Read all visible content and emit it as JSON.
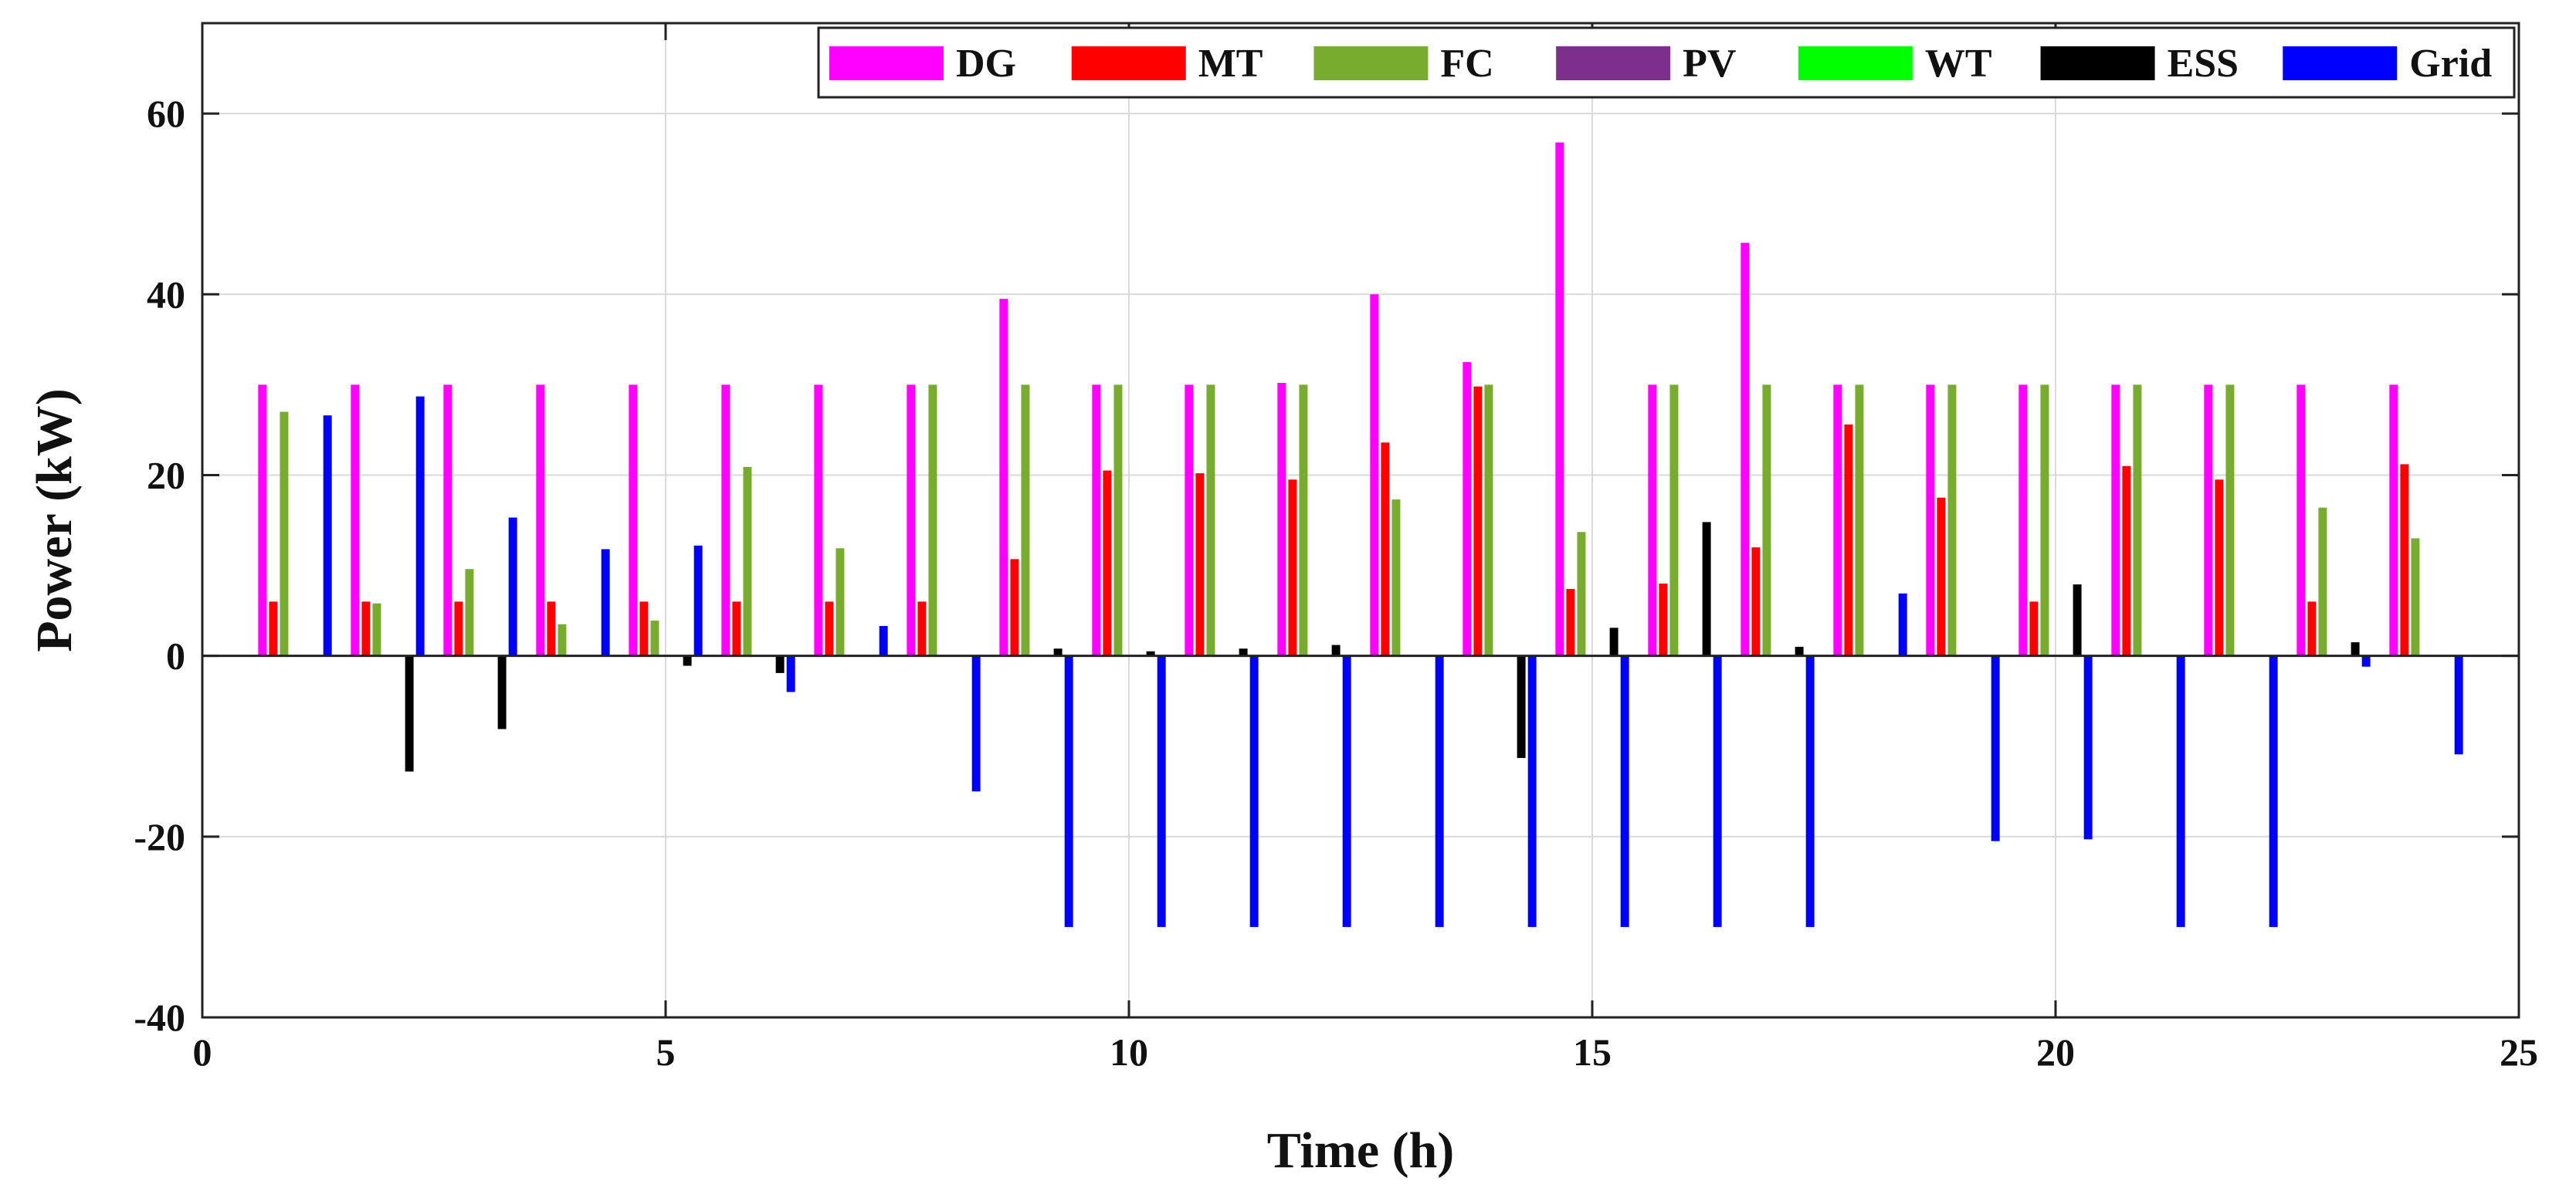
{
  "chart_data": {
    "type": "bar",
    "title": "",
    "xlabel": "Time (h)",
    "ylabel": "Power (kW)",
    "xlim": [
      0,
      25
    ],
    "ylim": [
      -40,
      70
    ],
    "xticks": [
      0,
      5,
      10,
      15,
      20,
      25
    ],
    "yticks": [
      -40,
      -20,
      0,
      20,
      40,
      60
    ],
    "xtick_labels": [
      "0",
      "5",
      "10",
      "15",
      "20",
      "25"
    ],
    "ytick_labels": [
      "-40",
      "-20",
      "0",
      "20",
      "40",
      "60"
    ],
    "grid": true,
    "legend_position": "top-right",
    "x": [
      1,
      2,
      3,
      4,
      5,
      6,
      7,
      8,
      9,
      10,
      11,
      12,
      13,
      14,
      15,
      16,
      17,
      18,
      19,
      20,
      21,
      22,
      23,
      24
    ],
    "series": [
      {
        "name": "DG",
        "color": "#ff00ff",
        "values": [
          30,
          30,
          30,
          30,
          30,
          30,
          30,
          30,
          39.5,
          30,
          30,
          30.2,
          40,
          32.5,
          56.8,
          30,
          45.7,
          30,
          30,
          30,
          30,
          30,
          30,
          30
        ]
      },
      {
        "name": "MT",
        "color": "#ff0000",
        "values": [
          6,
          6,
          6,
          6,
          6,
          6,
          6,
          6,
          10.7,
          20.5,
          20.2,
          19.5,
          23.6,
          29.8,
          7.4,
          8,
          12,
          25.6,
          17.5,
          6,
          21,
          19.5,
          6,
          21.2
        ]
      },
      {
        "name": "FC",
        "color": "#77ac30",
        "values": [
          27,
          5.8,
          9.6,
          3.5,
          3.9,
          20.9,
          11.9,
          30,
          30,
          30,
          30,
          30,
          17.3,
          30,
          13.7,
          30,
          30,
          30,
          30,
          30,
          30,
          30,
          16.4,
          13
        ]
      },
      {
        "name": "PV",
        "color": "#7e2f8e",
        "values": [
          0,
          0,
          0,
          0,
          0,
          0,
          0,
          0,
          0,
          0,
          0,
          0,
          0,
          0,
          0,
          0,
          0,
          0,
          0,
          0,
          0,
          0,
          0,
          0
        ]
      },
      {
        "name": "WT",
        "color": "#00ff00",
        "values": [
          0,
          0,
          0,
          0,
          0,
          0,
          0,
          0,
          0,
          0,
          0,
          0,
          0,
          0,
          0,
          0,
          0,
          0,
          0,
          0,
          0,
          0,
          0,
          0
        ]
      },
      {
        "name": "ESS",
        "color": "#000000",
        "values": [
          0,
          -12.8,
          -8.1,
          0,
          -1.1,
          -1.9,
          0,
          0,
          0.8,
          0.5,
          0.8,
          1.2,
          0,
          -11.3,
          3.1,
          14.8,
          1,
          0,
          0,
          7.9,
          0,
          0,
          1.5,
          0
        ]
      },
      {
        "name": "Grid",
        "color": "#0000ff",
        "values": [
          26.6,
          28.7,
          15.3,
          11.8,
          12.2,
          -4,
          3.3,
          -15,
          -30,
          -30,
          -30,
          -30,
          -30,
          -30,
          -30,
          -30,
          -30,
          6.9,
          -20.5,
          -20.3,
          -30,
          -30,
          -1.2,
          -10.9
        ]
      }
    ]
  }
}
